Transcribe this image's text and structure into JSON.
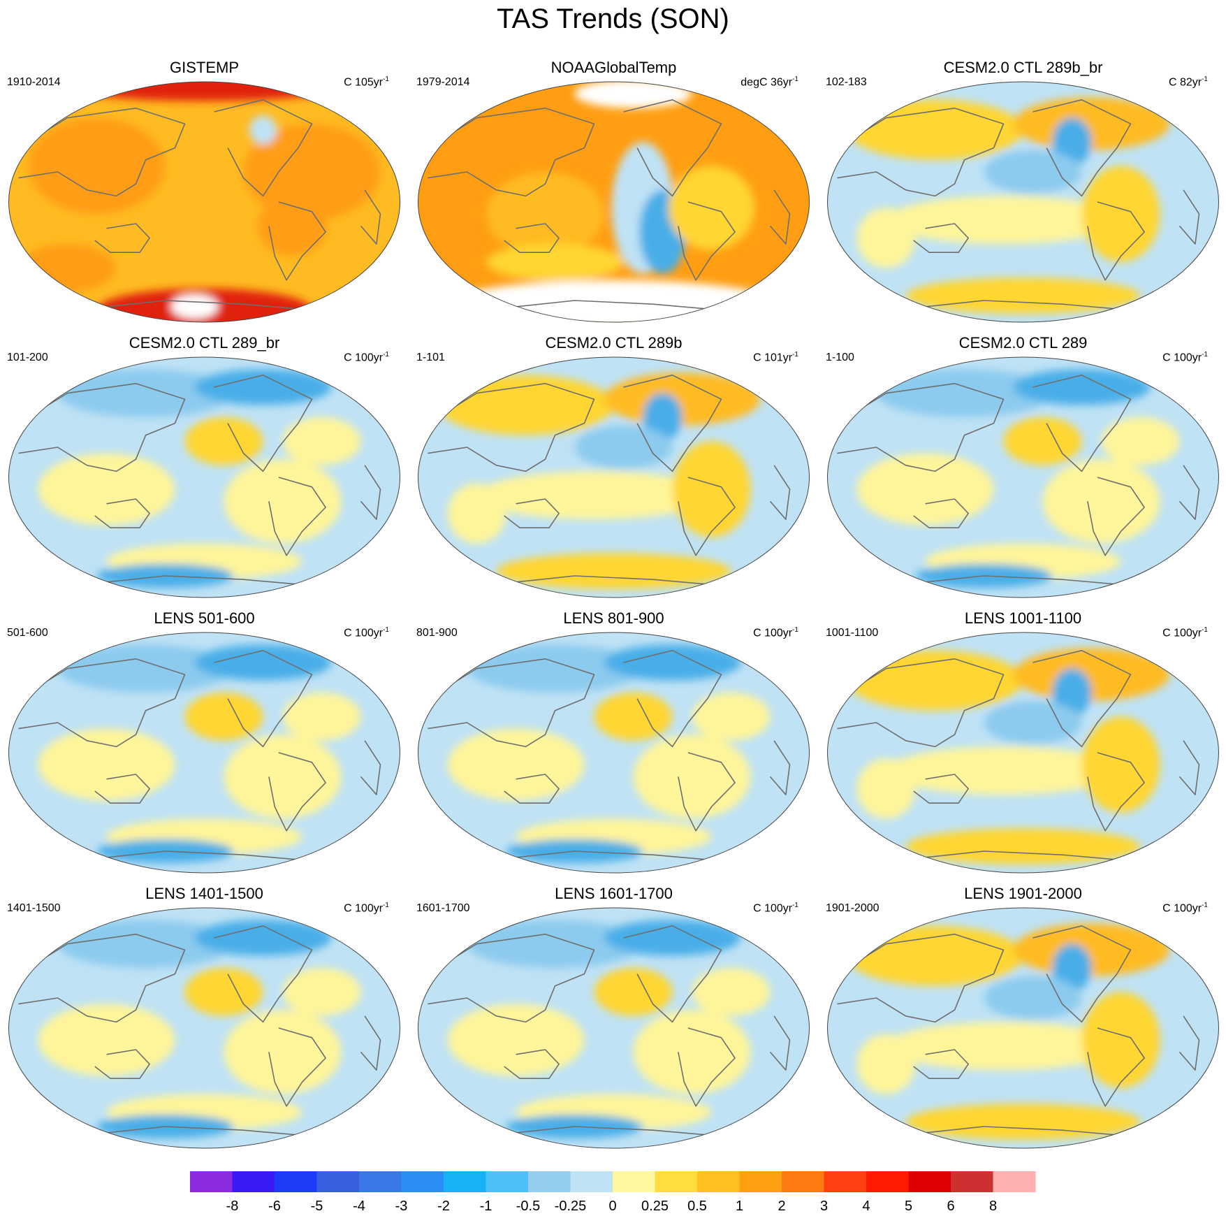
{
  "title": "TAS Trends (SON)",
  "panels": [
    {
      "title": "GISTEMP",
      "period": "1910-2014",
      "units": "C 105yr",
      "units_exp": "-1",
      "pattern": "warm_obs_a"
    },
    {
      "title": "NOAAGlobalTemp",
      "period": "1979-2014",
      "units": "degC 36yr",
      "units_exp": "-1",
      "pattern": "warm_obs_b"
    },
    {
      "title": "CESM2.0 CTL 289b_br",
      "period": "102-183",
      "units": "C 82yr",
      "units_exp": "-1",
      "pattern": "mixed_warm"
    },
    {
      "title": "CESM2.0 CTL 289_br",
      "period": "101-200",
      "units": "C 100yr",
      "units_exp": "-1",
      "pattern": "mixed_cool"
    },
    {
      "title": "CESM2.0 CTL 289b",
      "period": "1-101",
      "units": "C 101yr",
      "units_exp": "-1",
      "pattern": "mixed_warm"
    },
    {
      "title": "CESM2.0 CTL 289",
      "period": "1-100",
      "units": "C 100yr",
      "units_exp": "-1",
      "pattern": "mixed_cool"
    },
    {
      "title": "LENS 501-600",
      "period": "501-600",
      "units": "C 100yr",
      "units_exp": "-1",
      "pattern": "mixed_cool"
    },
    {
      "title": "LENS 801-900",
      "period": "801-900",
      "units": "C 100yr",
      "units_exp": "-1",
      "pattern": "mixed_cool"
    },
    {
      "title": "LENS 1001-1100",
      "period": "1001-1100",
      "units": "C 100yr",
      "units_exp": "-1",
      "pattern": "mixed_warm"
    },
    {
      "title": "LENS 1401-1500",
      "period": "1401-1500",
      "units": "C 100yr",
      "units_exp": "-1",
      "pattern": "mixed_cool"
    },
    {
      "title": "LENS 1601-1700",
      "period": "1601-1700",
      "units": "C 100yr",
      "units_exp": "-1",
      "pattern": "mixed_cool"
    },
    {
      "title": "LENS 1901-2000",
      "period": "1901-2000",
      "units": "C 100yr",
      "units_exp": "-1",
      "pattern": "mixed_warm"
    }
  ],
  "colorbar": {
    "labels": [
      "-8",
      "-6",
      "-5",
      "-4",
      "-3",
      "-2",
      "-1",
      "-0.5",
      "-0.25",
      "0",
      "0.25",
      "0.5",
      "1",
      "2",
      "3",
      "4",
      "5",
      "6",
      "8"
    ],
    "colors": [
      "#8a2be2",
      "#3a1af5",
      "#1e3cf5",
      "#3a5ee0",
      "#3a78e8",
      "#2b8ef5",
      "#16b2f5",
      "#4ec0f5",
      "#94cdee",
      "#bfe2f5",
      "#fff7a0",
      "#ffdd40",
      "#ffc020",
      "#ffa010",
      "#ff7a10",
      "#ff4010",
      "#ff1a00",
      "#dd0000",
      "#cc3030",
      "#ffb0b0"
    ]
  },
  "palette": {
    "deep_red": "#e02010",
    "orange": "#ff9e12",
    "light_orange": "#ffbb22",
    "gold": "#ffd633",
    "yellow": "#fff59a",
    "light_blue": "#bfe2f5",
    "mid_blue": "#8ccbee",
    "blue": "#4aaee8",
    "dark_blue": "#2a86e0",
    "white": "#ffffff",
    "coast": "#6e6e6e",
    "outline": "#444444"
  }
}
